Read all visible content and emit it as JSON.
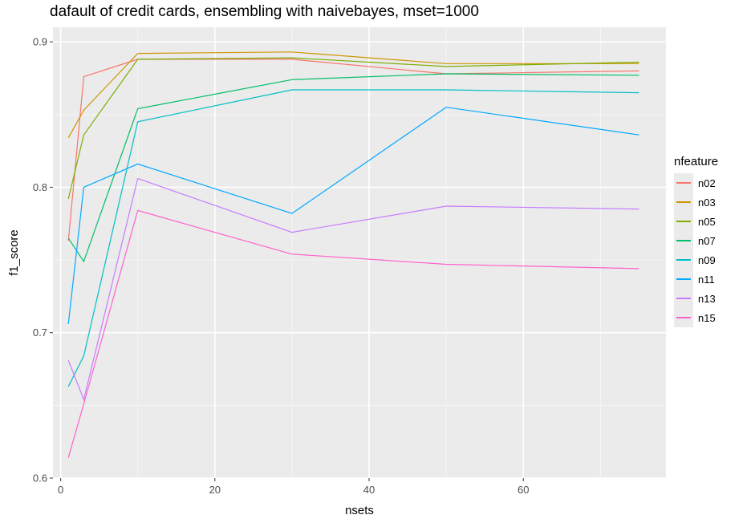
{
  "chart_data": {
    "type": "line",
    "title": "dafault of credit cards, ensembling with naivebayes, mset=1000",
    "xlabel": "nsets",
    "ylabel": "f1_score",
    "xlim": [
      -1,
      78.5
    ],
    "ylim": [
      0.6,
      0.91
    ],
    "xticks": [
      0,
      20,
      40,
      60
    ],
    "yticks": [
      0.6,
      0.7,
      0.8,
      0.9
    ],
    "xtick_labels": [
      "0",
      "20",
      "40",
      "60"
    ],
    "ytick_labels": [
      "0.6",
      "0.7",
      "0.8",
      "0.9"
    ],
    "grid": true,
    "legend_title": "nfeature",
    "legend_position": "right",
    "x": [
      1,
      3,
      10,
      30,
      50,
      75
    ],
    "series": [
      {
        "name": "n02",
        "color": "#F8766D",
        "values": [
          0.763,
          0.876,
          0.888,
          0.888,
          0.878,
          0.88
        ]
      },
      {
        "name": "n03",
        "color": "#CD9600",
        "values": [
          0.834,
          0.853,
          0.892,
          0.893,
          0.885,
          0.885
        ]
      },
      {
        "name": "n05",
        "color": "#7CAE00",
        "values": [
          0.792,
          0.836,
          0.888,
          0.889,
          0.883,
          0.886
        ]
      },
      {
        "name": "n07",
        "color": "#00BE67",
        "values": [
          0.765,
          0.749,
          0.854,
          0.874,
          0.878,
          0.877
        ]
      },
      {
        "name": "n09",
        "color": "#00BFC4",
        "values": [
          0.663,
          0.684,
          0.845,
          0.867,
          0.867,
          0.865
        ]
      },
      {
        "name": "n11",
        "color": "#00A9FF",
        "values": [
          0.706,
          0.8,
          0.816,
          0.782,
          0.855,
          0.836
        ]
      },
      {
        "name": "n13",
        "color": "#C77CFF",
        "values": [
          0.681,
          0.654,
          0.806,
          0.769,
          0.787,
          0.785
        ]
      },
      {
        "name": "n15",
        "color": "#FF61CC",
        "values": [
          0.614,
          0.651,
          0.784,
          0.754,
          0.747,
          0.744
        ]
      }
    ]
  }
}
